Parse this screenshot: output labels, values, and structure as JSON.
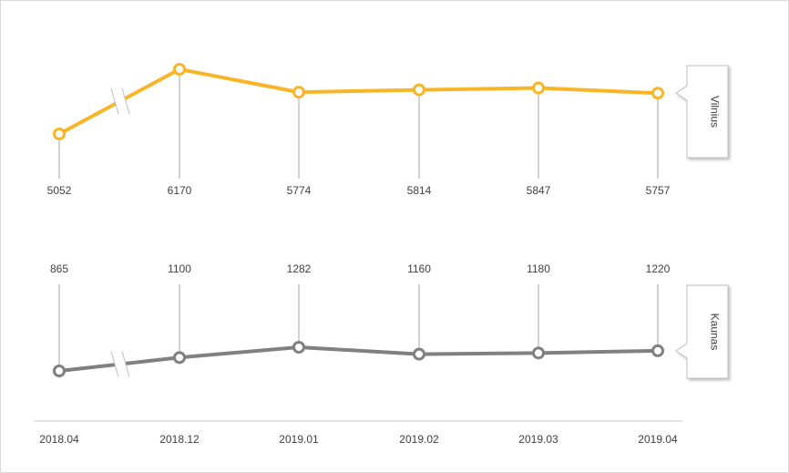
{
  "chart_data": {
    "type": "line",
    "categories": [
      "2018.04",
      "2018.12",
      "2019.01",
      "2019.02",
      "2019.03",
      "2019.04"
    ],
    "axis_break": "between 2018.04 and 2018.12",
    "grid": false,
    "series": [
      {
        "name": "Vilnius",
        "values": [
          5052,
          6170,
          5774,
          5814,
          5847,
          5757
        ],
        "color": "#F9B526"
      },
      {
        "name": "Kaunas",
        "values": [
          865,
          1100,
          1282,
          1160,
          1180,
          1220
        ],
        "color": "#808080"
      }
    ]
  }
}
